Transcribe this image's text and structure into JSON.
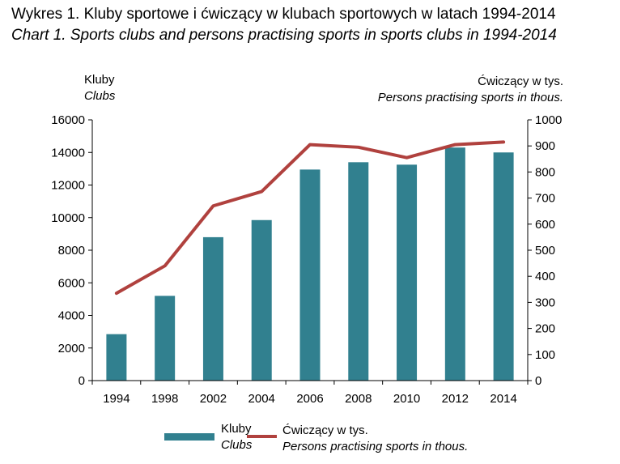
{
  "title_pl": "Wykres 1. Kluby sportowe i ćwiczący w klubach sportowych w latach 1994-2014",
  "title_en": "Chart 1. Sports clubs and persons practising sports in sports clubs in 1994-2014",
  "left_axis": {
    "label_pl": "Kluby",
    "label_en": "Clubs"
  },
  "right_axis": {
    "label_pl": "Ćwiczący w tys.",
    "label_en": "Persons practising sports in thous."
  },
  "legend": {
    "bar_pl": "Kluby",
    "bar_en": "Clubs",
    "line_pl": "Ćwiczący w tys.",
    "line_en": "Persons practising sports in thous."
  },
  "colors": {
    "bar": "#31808f",
    "line": "#b0413e",
    "axis": "#000000"
  },
  "chart_data": {
    "type": "bar",
    "categories": [
      "1994",
      "1998",
      "2002",
      "2004",
      "2006",
      "2008",
      "2010",
      "2012",
      "2014"
    ],
    "series": [
      {
        "name": "Kluby",
        "axis": "left",
        "kind": "bar",
        "values": [
          2850,
          5200,
          8800,
          9850,
          12950,
          13400,
          13250,
          14300,
          14000
        ]
      },
      {
        "name": "Ćwiczący w tys.",
        "axis": "right",
        "kind": "line",
        "values": [
          335,
          440,
          670,
          725,
          905,
          895,
          855,
          905,
          915
        ]
      }
    ],
    "ylim_left": [
      0,
      16000
    ],
    "yticks_left": [
      0,
      2000,
      4000,
      6000,
      8000,
      10000,
      12000,
      14000,
      16000
    ],
    "ylim_right": [
      0,
      1000
    ],
    "yticks_right": [
      0,
      100,
      200,
      300,
      400,
      500,
      600,
      700,
      800,
      900,
      1000
    ],
    "grid": false,
    "legend_position": "bottom"
  }
}
